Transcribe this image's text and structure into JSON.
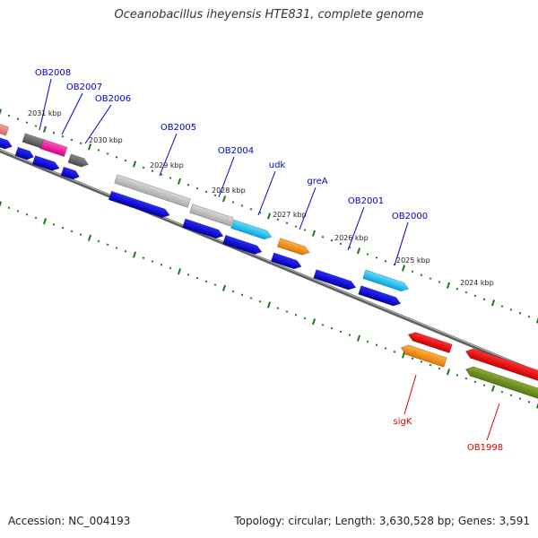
{
  "title": "Oceanobacillus iheyensis HTE831, complete genome",
  "footer": {
    "accession": "Accession: NC_004193",
    "topology": "Topology: circular; Length: 3,630,528 bp; Genes: 3,591"
  },
  "colors": {
    "forward_label": "#0000cc",
    "reverse_label": "#dd0000",
    "tick": "#1a7a1a",
    "backbone": "#7a7a7a"
  },
  "kbp_markers": [
    "2031 kbp",
    "2030 kbp",
    "2029 kbp",
    "2028 kbp",
    "2027 kbp",
    "2026 kbp",
    "2025 kbp",
    "2024 kbp"
  ],
  "forward_genes": [
    "OB2008",
    "OB2007",
    "OB2006",
    "OB2005",
    "OB2004",
    "udk",
    "greA",
    "OB2001",
    "OB2000"
  ],
  "reverse_genes": [
    "sigK",
    "OB1998"
  ]
}
